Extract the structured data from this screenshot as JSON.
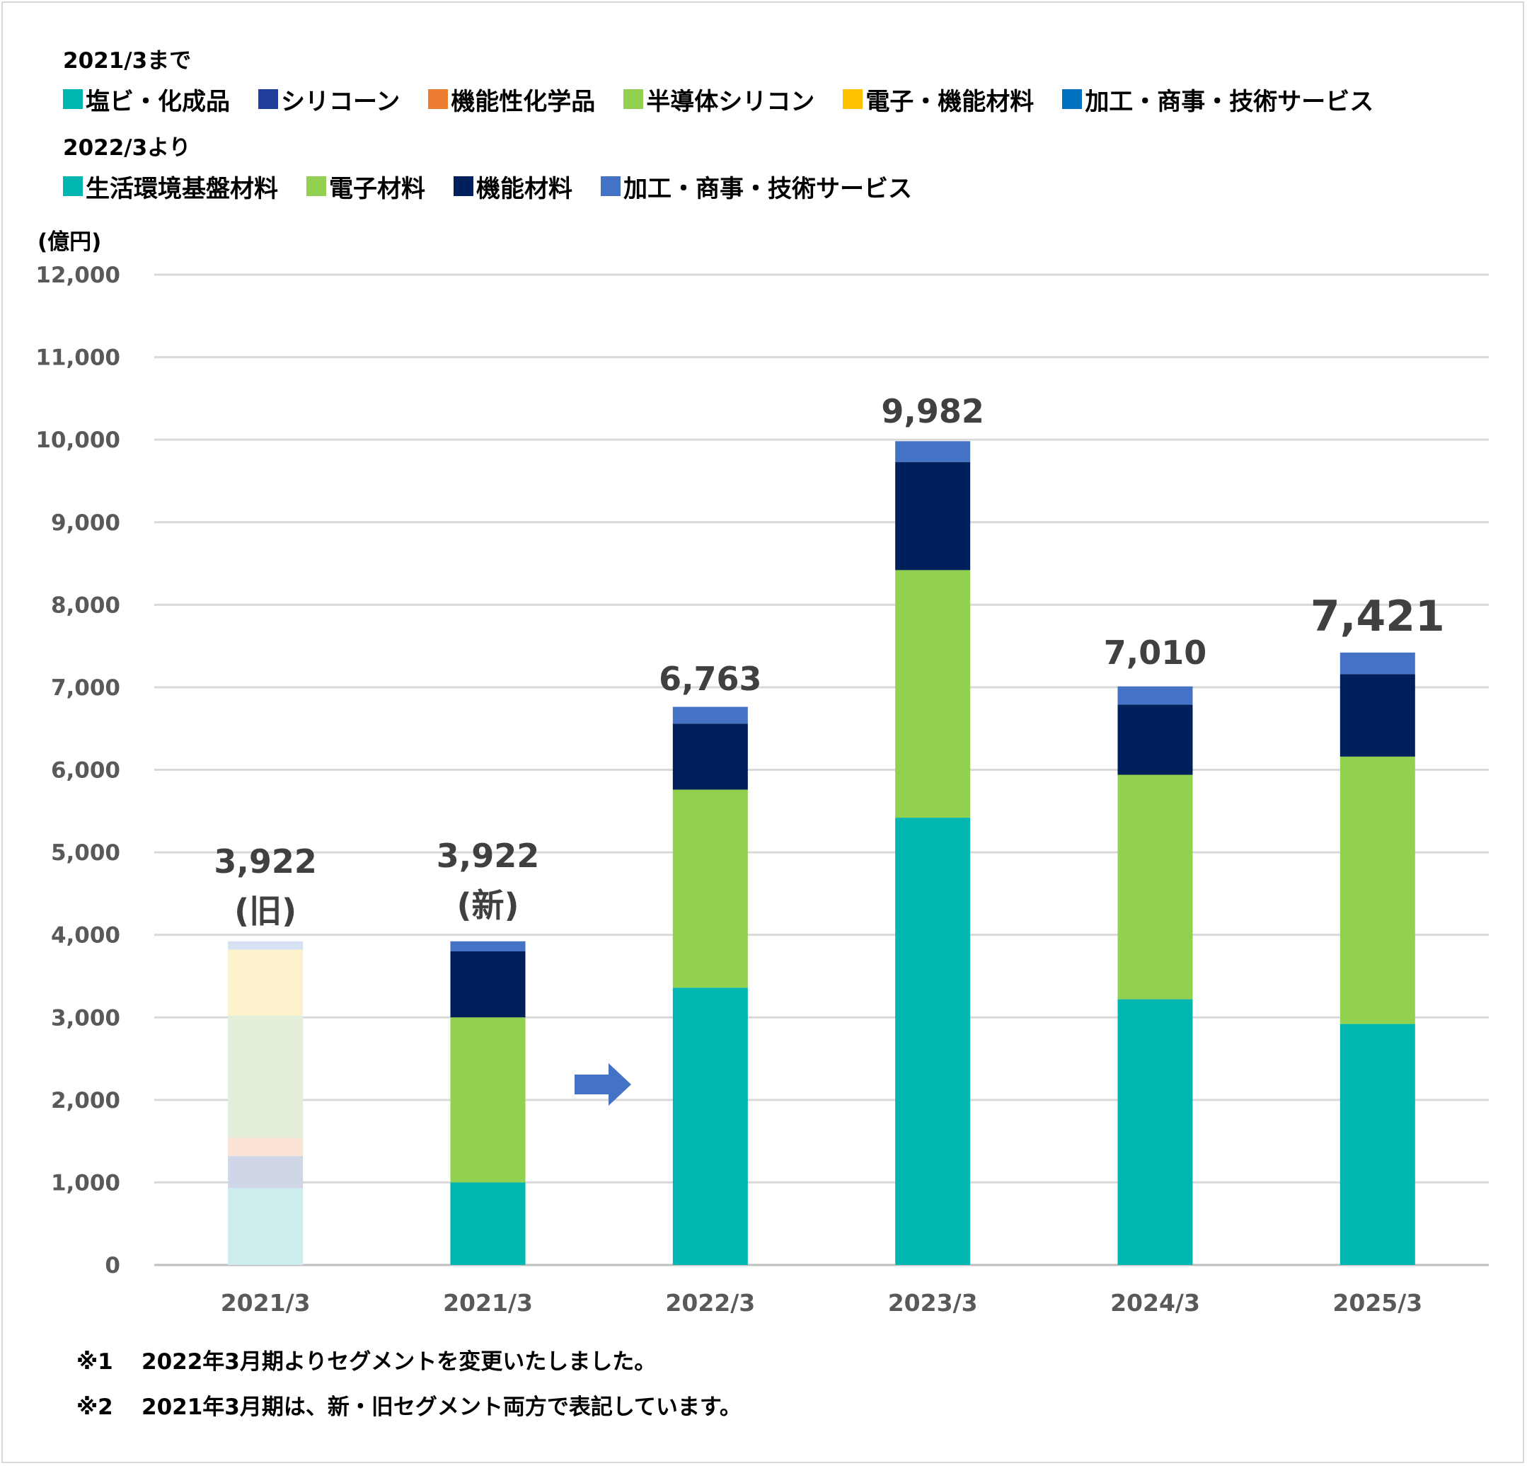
{
  "legend": {
    "old_heading": "2021/3まで",
    "old_items": [
      {
        "label": "塩ビ・化成品",
        "color": "#00b6b0"
      },
      {
        "label": "シリコーン",
        "color": "#203f9a"
      },
      {
        "label": "機能性化学品",
        "color": "#ed7d31"
      },
      {
        "label": "半導体シリコン",
        "color": "#92d050"
      },
      {
        "label": "電子・機能材料",
        "color": "#ffc000"
      },
      {
        "label": "加工・商事・技術サービス",
        "color": "#0070c0"
      }
    ],
    "new_heading": "2022/3より",
    "new_items": [
      {
        "label": "生活環境基盤材料",
        "color": "#00b6b0"
      },
      {
        "label": "電子材料",
        "color": "#92d050"
      },
      {
        "label": "機能材料",
        "color": "#00205b"
      },
      {
        "label": "加工・商事・技術サービス",
        "color": "#4472c4"
      }
    ]
  },
  "chart_data": {
    "type": "bar",
    "stacked": true,
    "ylabel": "(億円)",
    "ylim": [
      0,
      12000
    ],
    "yticks": [
      "0",
      "1,000",
      "2,000",
      "3,000",
      "4,000",
      "5,000",
      "6,000",
      "7,000",
      "8,000",
      "9,000",
      "10,000",
      "11,000",
      "12,000"
    ],
    "grid": true,
    "categories": [
      "2021/3",
      "2021/3",
      "2022/3",
      "2023/3",
      "2024/3",
      "2025/3"
    ],
    "old_segment_bar": {
      "category_index": 0,
      "faded": true,
      "segments": [
        {
          "name": "塩ビ・化成品",
          "value": 930,
          "color": "#cdeeed"
        },
        {
          "name": "シリコーン",
          "value": 390,
          "color": "#cfd6e8"
        },
        {
          "name": "機能性化学品",
          "value": 220,
          "color": "#fbe4d6"
        },
        {
          "name": "半導体シリコン",
          "value": 1480,
          "color": "#e3efdb"
        },
        {
          "name": "電子・機能材料",
          "value": 800,
          "color": "#fef2cc"
        },
        {
          "name": "加工・商事・技術サービス",
          "value": 102,
          "color": "#d6e2f2"
        }
      ]
    },
    "series": [
      {
        "name": "生活環境基盤材料",
        "color": "#00b6b0",
        "values": [
          null,
          1000,
          3360,
          5420,
          3220,
          2920
        ]
      },
      {
        "name": "電子材料",
        "color": "#92d050",
        "values": [
          null,
          2000,
          2400,
          3000,
          2720,
          3240
        ]
      },
      {
        "name": "機能材料",
        "color": "#00205b",
        "values": [
          null,
          800,
          800,
          1310,
          850,
          1000
        ]
      },
      {
        "name": "加工・商事・技術サービス",
        "color": "#4472c4",
        "values": [
          null,
          122,
          203,
          252,
          220,
          261
        ]
      }
    ],
    "totals": [
      {
        "value": "3,922",
        "sub": "(旧)"
      },
      {
        "value": "3,922",
        "sub": "(新)"
      },
      {
        "value": "6,763",
        "sub": ""
      },
      {
        "value": "9,982",
        "sub": ""
      },
      {
        "value": "7,010",
        "sub": ""
      },
      {
        "value": "7,421",
        "sub": ""
      }
    ],
    "arrow_color": "#4472c4"
  },
  "notes": [
    {
      "mark": "※1",
      "text": "2022年3月期よりセグメントを変更いたしました。"
    },
    {
      "mark": "※2",
      "text": "2021年3月期は、新・旧セグメント両方で表記しています。"
    }
  ]
}
